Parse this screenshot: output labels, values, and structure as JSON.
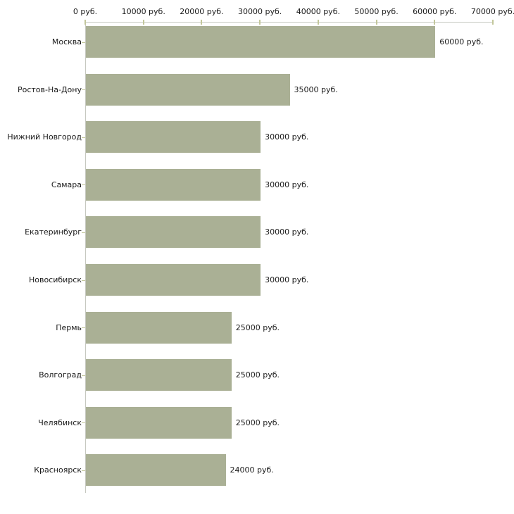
{
  "chart_data": {
    "type": "bar",
    "orientation": "horizontal",
    "title": "",
    "xlabel": "",
    "ylabel": "",
    "categories": [
      "Москва",
      "Ростов-На-Дону",
      "Нижний Новгород",
      "Самара",
      "Екатеринбург",
      "Новосибирск",
      "Пермь",
      "Волгоград",
      "Челябинск",
      "Красноярск"
    ],
    "values": [
      60000,
      35000,
      30000,
      30000,
      30000,
      30000,
      25000,
      25000,
      25000,
      24000
    ],
    "value_labels": [
      "60000 руб.",
      "35000 руб.",
      "30000 руб.",
      "30000 руб.",
      "30000 руб.",
      "30000 руб.",
      "25000 руб.",
      "25000 руб.",
      "25000 руб.",
      "24000 руб."
    ],
    "x_axis": {
      "position": "top",
      "min": 0,
      "max": 70000,
      "ticks": [
        0,
        10000,
        20000,
        30000,
        40000,
        50000,
        60000,
        70000
      ],
      "tick_labels": [
        "0 руб.",
        "10000 руб.",
        "20000 руб.",
        "30000 руб.",
        "40000 руб.",
        "50000 руб.",
        "60000 руб.",
        "70000 руб."
      ]
    },
    "grid": false,
    "legend": false,
    "colors": {
      "bar": "#aab095",
      "axis_line": "#c6c8c0",
      "tick": "#c3c79b",
      "text": "#1a1a1a",
      "background": "#ffffff"
    }
  }
}
